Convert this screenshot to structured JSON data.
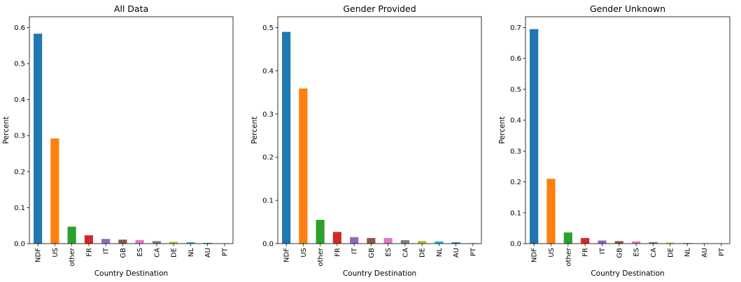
{
  "chart_data": [
    {
      "type": "bar",
      "title": "All Data",
      "xlabel": "Country Destination",
      "ylabel": "Percent",
      "ylim": [
        0,
        0.6
      ],
      "yticks": [
        "0.0",
        "0.1",
        "0.2",
        "0.3",
        "0.4",
        "0.5",
        "0.6"
      ],
      "categories": [
        "NDF",
        "US",
        "other",
        "FR",
        "IT",
        "GB",
        "ES",
        "CA",
        "DE",
        "NL",
        "AU",
        "PT"
      ],
      "values": [
        0.583,
        0.292,
        0.047,
        0.023,
        0.013,
        0.011,
        0.01,
        0.007,
        0.005,
        0.004,
        0.002,
        0.001
      ],
      "grid": false,
      "legend": "none"
    },
    {
      "type": "bar",
      "title": "Gender Provided",
      "xlabel": "Country Destination",
      "ylabel": "Percent",
      "ylim": [
        0,
        0.5
      ],
      "yticks": [
        "0.0",
        "0.1",
        "0.2",
        "0.3",
        "0.4",
        "0.5"
      ],
      "categories": [
        "NDF",
        "US",
        "other",
        "FR",
        "IT",
        "GB",
        "ES",
        "CA",
        "DE",
        "NL",
        "AU",
        "PT"
      ],
      "values": [
        0.49,
        0.359,
        0.055,
        0.027,
        0.015,
        0.013,
        0.013,
        0.008,
        0.006,
        0.005,
        0.003,
        0.001
      ],
      "grid": false,
      "legend": "none"
    },
    {
      "type": "bar",
      "title": "Gender Unknown",
      "xlabel": "Country Destination",
      "ylabel": "Percent",
      "ylim": [
        0,
        0.7
      ],
      "yticks": [
        "0.0",
        "0.1",
        "0.2",
        "0.3",
        "0.4",
        "0.5",
        "0.6",
        "0.7"
      ],
      "categories": [
        "NDF",
        "US",
        "other",
        "FR",
        "IT",
        "GB",
        "ES",
        "CA",
        "DE",
        "NL",
        "AU",
        "PT"
      ],
      "values": [
        0.695,
        0.21,
        0.036,
        0.018,
        0.01,
        0.008,
        0.007,
        0.005,
        0.003,
        0.002,
        0.001,
        0.0005
      ],
      "grid": false,
      "legend": "none"
    }
  ],
  "colors": [
    "#1f77b4",
    "#ff7f0e",
    "#2ca02c",
    "#d62728",
    "#9467bd",
    "#8c564b",
    "#e377c2",
    "#7f7f7f",
    "#bcbd22",
    "#17becf",
    "#1f77b4",
    "#ff7f0e"
  ]
}
